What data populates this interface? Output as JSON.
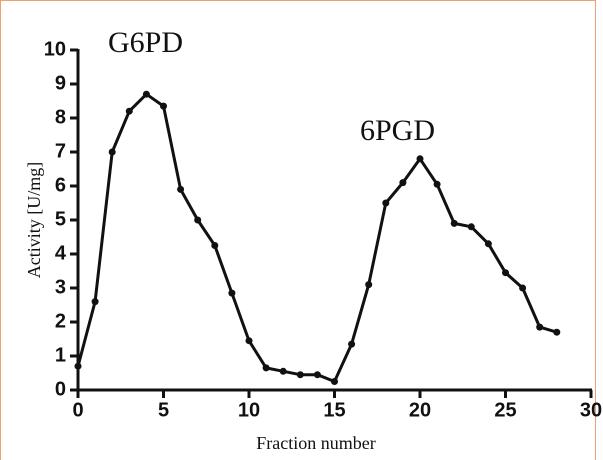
{
  "chart_data": {
    "type": "line",
    "x_label": "Fraction number",
    "y_label": "Activity [U/mg]",
    "annotations": [
      "G6PD",
      "6PGD"
    ],
    "x": [
      0,
      1,
      2,
      3,
      4,
      5,
      6,
      7,
      8,
      9,
      10,
      11,
      12,
      13,
      14,
      15,
      16,
      17,
      18,
      19,
      20,
      21,
      22,
      23,
      24,
      25,
      26,
      27,
      28
    ],
    "series": [
      {
        "color": "#111111",
        "values": [
          0.7,
          2.6,
          7.0,
          8.2,
          8.7,
          8.35,
          5.9,
          5.0,
          4.25,
          2.85,
          1.45,
          0.65,
          0.55,
          0.45,
          0.45,
          0.25,
          1.35,
          3.1,
          5.5,
          6.1,
          6.8,
          6.05,
          4.9,
          4.8,
          4.3,
          3.45,
          3.0,
          1.85,
          1.7
        ]
      }
    ],
    "xlim": [
      0,
      30
    ],
    "xticks": [
      0,
      5,
      10,
      15,
      20,
      25,
      30
    ],
    "ylim": [
      0,
      10
    ],
    "yticks": [
      0,
      1,
      2,
      3,
      4,
      5,
      6,
      7,
      8,
      9,
      10
    ]
  }
}
